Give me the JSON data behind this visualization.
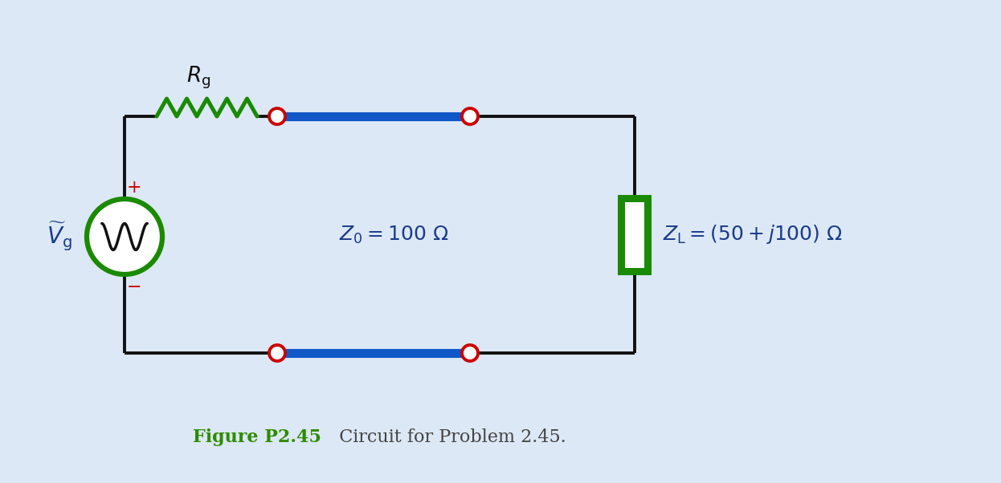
{
  "bg_color": "#dce8f5",
  "circuit_line_color": "#111111",
  "resistor_color": "#1a8a00",
  "wire_blue_color": "#1058c8",
  "node_color": "#cc0000",
  "load_box_color": "#1a8a00",
  "source_circle_color": "#1a8a00",
  "title_green": "#2e8b00",
  "title_black": "#444444",
  "title_text_bold": "Figure P2.45",
  "title_text_normal": "  Circuit for Problem 2.45.",
  "Z0_label": "$Z_0 = 100\\ \\Omega$",
  "ZL_label": "$Z_{\\mathrm{L}} = (50 + j100)\\ \\Omega$",
  "Rg_label": "$R_{\\mathrm{g}}$",
  "Vg_label": "$\\widetilde{V}_{\\mathrm{g}}$",
  "plus_label": "+",
  "minus_label": "−",
  "line_lw": 2.8,
  "blue_lw": 8.0,
  "node_r": 9.0,
  "source_r": 42.0
}
